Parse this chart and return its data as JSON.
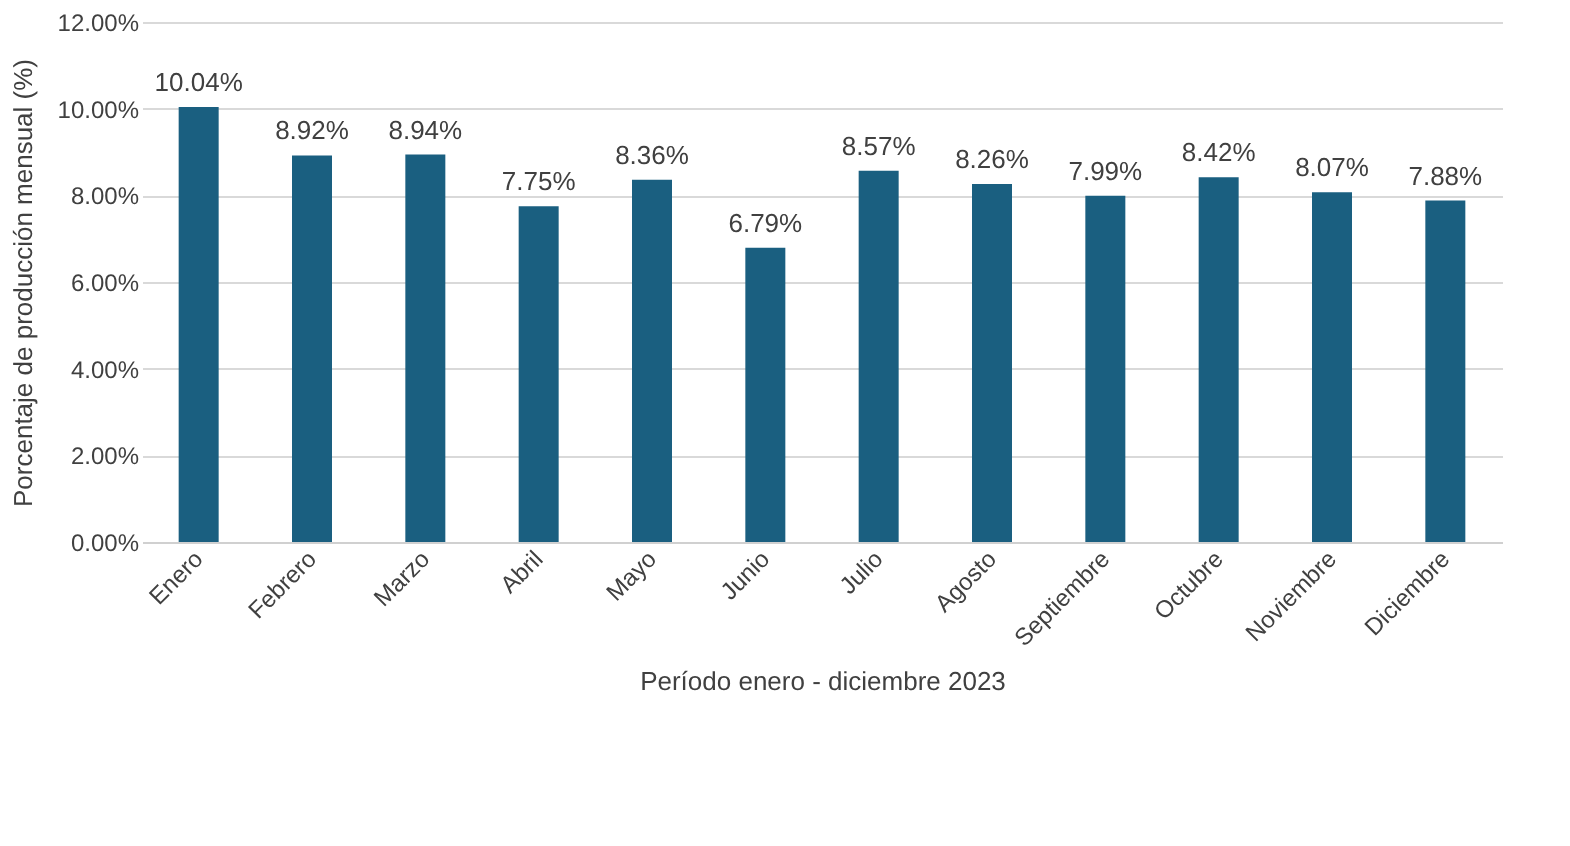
{
  "chart_data": {
    "type": "bar",
    "xlabel": "Período enero - diciembre 2023",
    "ylabel": "Porcentaje de producción mensual (%)",
    "categories": [
      "Enero",
      "Febrero",
      "Marzo",
      "Abril",
      "Mayo",
      "Junio",
      "Julio",
      "Agosto",
      "Septiembre",
      "Octubre",
      "Noviembre",
      "Diciembre"
    ],
    "values": [
      10.04,
      8.92,
      8.94,
      7.75,
      8.36,
      6.79,
      8.57,
      8.26,
      7.99,
      8.42,
      8.07,
      7.88
    ],
    "value_labels": [
      "10.04%",
      "8.92%",
      "8.94%",
      "7.75%",
      "8.36%",
      "6.79%",
      "8.57%",
      "8.26%",
      "7.99%",
      "8.42%",
      "8.07%",
      "7.88%"
    ],
    "color": "#1a5f80",
    "ylim": [
      0,
      12
    ],
    "yticks": [
      {
        "value": 0,
        "label": "0.00%"
      },
      {
        "value": 2,
        "label": "2.00%"
      },
      {
        "value": 4,
        "label": "4.00%"
      },
      {
        "value": 6,
        "label": "6.00%"
      },
      {
        "value": 8,
        "label": "8.00%"
      },
      {
        "value": 10,
        "label": "10.00%"
      },
      {
        "value": 12,
        "label": "12.00%"
      }
    ],
    "grid": "y"
  }
}
